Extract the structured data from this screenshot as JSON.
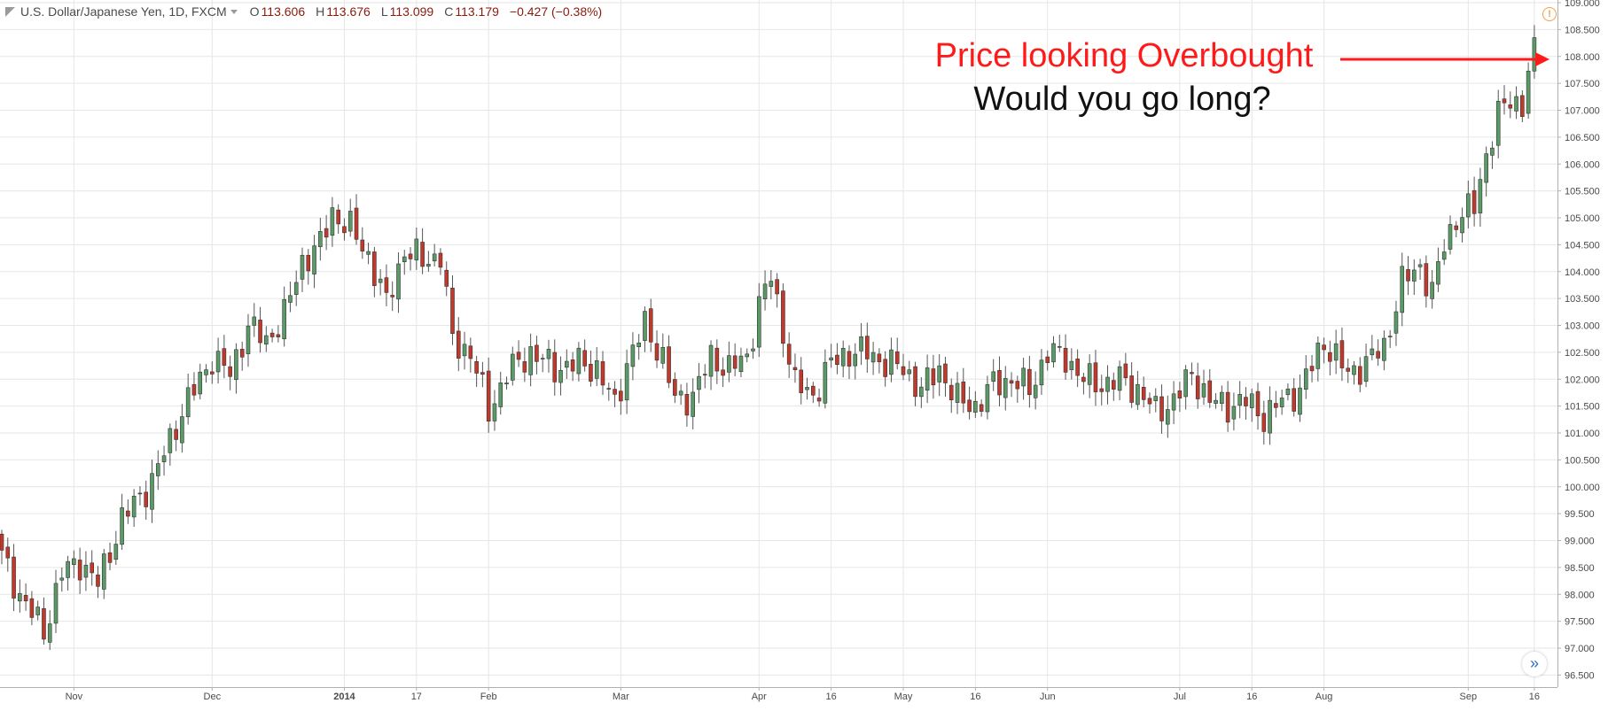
{
  "header": {
    "symbol_title": "U.S. Dollar/Japanese Yen, 1D, FXCM",
    "open_label": "O",
    "open_value": "113.606",
    "high_label": "H",
    "high_value": "113.676",
    "low_label": "L",
    "low_value": "113.099",
    "close_label": "C",
    "close_value": "113.179",
    "change": "−0.427 (−0.38%)"
  },
  "annotations": {
    "line1": "Price looking Overbought",
    "line2": "Would you go long?"
  },
  "icons": {
    "warning": "warning-icon",
    "scroll": "scroll-to-latest-icon",
    "symbol": "symbol-flag-icon"
  },
  "colors": {
    "up": "#5a9a66",
    "down": "#c0392b",
    "wick": "#555555",
    "grid": "#e6e6e6",
    "annotation_red": "#ff1a1a",
    "annotation_black": "#111111",
    "axis_text": "#4a4a4a"
  },
  "chart_data": {
    "type": "candlestick",
    "title": "U.S. Dollar/Japanese Yen, 1D, FXCM",
    "ylim": [
      96.25,
      109.0
    ],
    "grid": true,
    "y_ticks": [
      "96.500",
      "97.000",
      "97.500",
      "98.000",
      "98.500",
      "99.000",
      "99.500",
      "100.000",
      "100.500",
      "101.000",
      "101.500",
      "102.000",
      "102.500",
      "103.000",
      "103.500",
      "104.000",
      "104.500",
      "105.000",
      "105.500",
      "106.000",
      "106.500",
      "107.000",
      "107.500",
      "108.000",
      "108.500",
      "109.000"
    ],
    "x_ticks": [
      {
        "label": "Nov",
        "bar": 12
      },
      {
        "label": "Dec",
        "bar": 35
      },
      {
        "label": "2014",
        "bar": 57
      },
      {
        "label": "17",
        "bar": 69
      },
      {
        "label": "Feb",
        "bar": 81
      },
      {
        "label": "Mar",
        "bar": 103
      },
      {
        "label": "Apr",
        "bar": 126
      },
      {
        "label": "16",
        "bar": 138
      },
      {
        "label": "May",
        "bar": 150
      },
      {
        "label": "16",
        "bar": 162
      },
      {
        "label": "Jun",
        "bar": 174
      },
      {
        "label": "Jul",
        "bar": 196
      },
      {
        "label": "16",
        "bar": 208
      },
      {
        "label": "Aug",
        "bar": 220
      },
      {
        "label": "Sep",
        "bar": 244
      },
      {
        "label": "16",
        "bar": 255
      }
    ],
    "anchors": [
      [
        0,
        98.7
      ],
      [
        3,
        98.0
      ],
      [
        7,
        97.3
      ],
      [
        10,
        98.4
      ],
      [
        13,
        98.6
      ],
      [
        16,
        98.2
      ],
      [
        20,
        99.4
      ],
      [
        25,
        100.1
      ],
      [
        30,
        101.4
      ],
      [
        35,
        102.4
      ],
      [
        38,
        102.1
      ],
      [
        41,
        103.0
      ],
      [
        44,
        102.7
      ],
      [
        47,
        103.2
      ],
      [
        50,
        104.2
      ],
      [
        53,
        104.5
      ],
      [
        55,
        105.1
      ],
      [
        58,
        104.8
      ],
      [
        61,
        104.3
      ],
      [
        64,
        103.4
      ],
      [
        67,
        104.4
      ],
      [
        70,
        104.2
      ],
      [
        73,
        104.3
      ],
      [
        75,
        102.7
      ],
      [
        78,
        102.5
      ],
      [
        81,
        101.4
      ],
      [
        84,
        102.1
      ],
      [
        88,
        102.5
      ],
      [
        92,
        102.2
      ],
      [
        96,
        102.3
      ],
      [
        99,
        102.2
      ],
      [
        102,
        101.5
      ],
      [
        104,
        102.3
      ],
      [
        107,
        103.0
      ],
      [
        110,
        102.4
      ],
      [
        112,
        101.6
      ],
      [
        115,
        101.7
      ],
      [
        118,
        102.4
      ],
      [
        121,
        102.2
      ],
      [
        124,
        102.4
      ],
      [
        126,
        103.4
      ],
      [
        128,
        103.9
      ],
      [
        130,
        102.9
      ],
      [
        132,
        101.9
      ],
      [
        135,
        101.7
      ],
      [
        138,
        102.3
      ],
      [
        141,
        102.5
      ],
      [
        144,
        102.5
      ],
      [
        147,
        102.3
      ],
      [
        150,
        102.2
      ],
      [
        153,
        101.8
      ],
      [
        156,
        102.2
      ],
      [
        159,
        101.6
      ],
      [
        162,
        101.5
      ],
      [
        165,
        101.9
      ],
      [
        168,
        102.0
      ],
      [
        171,
        101.8
      ],
      [
        174,
        102.5
      ],
      [
        177,
        102.4
      ],
      [
        180,
        102.0
      ],
      [
        183,
        101.9
      ],
      [
        186,
        102.0
      ],
      [
        189,
        101.8
      ],
      [
        192,
        101.4
      ],
      [
        195,
        101.6
      ],
      [
        198,
        102.1
      ],
      [
        201,
        101.6
      ],
      [
        204,
        101.5
      ],
      [
        207,
        101.6
      ],
      [
        210,
        101.3
      ],
      [
        213,
        101.6
      ],
      [
        216,
        101.8
      ],
      [
        220,
        102.7
      ],
      [
        222,
        102.4
      ],
      [
        224,
        102.1
      ],
      [
        227,
        102.3
      ],
      [
        230,
        102.6
      ],
      [
        233,
        103.8
      ],
      [
        236,
        104.1
      ],
      [
        238,
        103.6
      ],
      [
        240,
        104.5
      ],
      [
        242,
        105.0
      ],
      [
        245,
        105.2
      ],
      [
        247,
        106.2
      ],
      [
        249,
        106.9
      ],
      [
        251,
        107.2
      ],
      [
        253,
        107.1
      ],
      [
        255,
        108.3
      ]
    ]
  }
}
